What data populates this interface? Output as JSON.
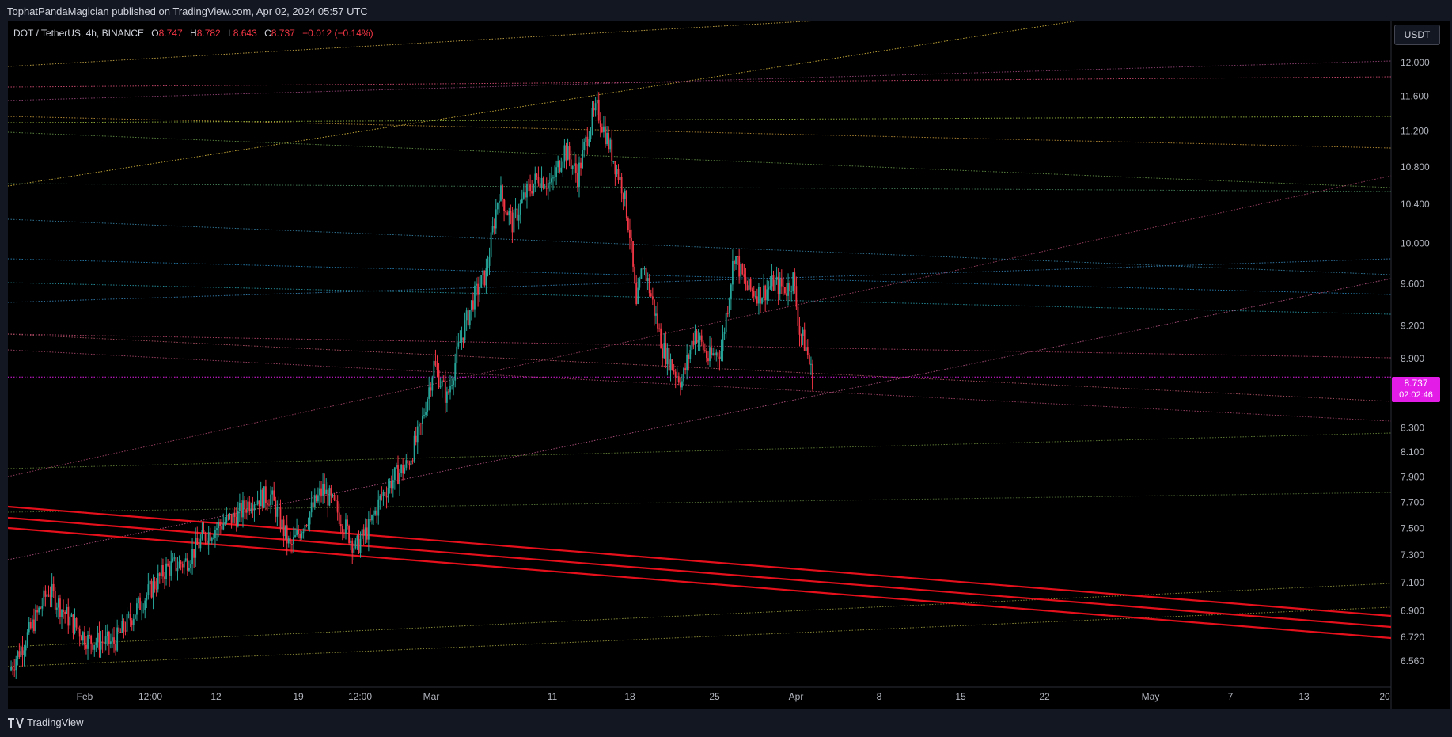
{
  "header": {
    "published_text": "TophatPandaMagician published on TradingView.com, Apr 02, 2024 05:57 UTC"
  },
  "legend": {
    "symbol": "DOT / TetherUS, 4h, BINANCE",
    "open_label": "O",
    "open": "8.747",
    "high_label": "H",
    "high": "8.782",
    "low_label": "L",
    "low": "8.643",
    "close_label": "C",
    "close": "8.737",
    "change": "−0.012 (−0.14%)"
  },
  "currency_button": "USDT",
  "price_tag": {
    "price": "8.737",
    "countdown": "02:02:46"
  },
  "footer": {
    "brand": "TradingView"
  },
  "colors": {
    "background": "#000000",
    "up_candle": "#26a69a",
    "down_candle": "#f23645",
    "last_price": "#e31ce8",
    "channel": "#e5101b"
  },
  "chart_data": {
    "type": "candlestick",
    "symbol": "DOT / TetherUS",
    "interval": "4h",
    "exchange": "BINANCE",
    "y_axis": {
      "scale": "log",
      "range": [
        6.42,
        12.45
      ],
      "ticks": [
        "12.000",
        "11.600",
        "11.200",
        "10.800",
        "10.400",
        "10.000",
        "9.600",
        "9.200",
        "8.900",
        "8.300",
        "8.100",
        "7.900",
        "7.700",
        "7.500",
        "7.300",
        "7.100",
        "6.900",
        "6.720",
        "6.560"
      ]
    },
    "x_axis": {
      "ticks": [
        "Feb",
        "12:00",
        "12",
        "19",
        "12:00",
        "Mar",
        "11",
        "18",
        "25",
        "Apr",
        "8",
        "15",
        "22",
        "May",
        "7",
        "13",
        "20"
      ]
    },
    "price_path": [
      [
        0,
        6.5
      ],
      [
        3,
        6.75
      ],
      [
        6,
        7.05
      ],
      [
        9,
        6.85
      ],
      [
        12,
        6.7
      ],
      [
        16,
        6.68
      ],
      [
        20,
        6.95
      ],
      [
        24,
        7.2
      ],
      [
        27,
        7.25
      ],
      [
        30,
        7.45
      ],
      [
        33,
        7.55
      ],
      [
        35,
        7.6
      ],
      [
        37,
        7.72
      ],
      [
        40,
        7.75
      ],
      [
        43,
        7.35
      ],
      [
        46,
        7.62
      ],
      [
        48,
        7.8
      ],
      [
        50,
        7.65
      ],
      [
        53,
        7.35
      ],
      [
        55,
        7.5
      ],
      [
        57,
        7.75
      ],
      [
        59,
        7.9
      ],
      [
        61,
        8.0
      ],
      [
        63,
        8.3
      ],
      [
        65,
        8.85
      ],
      [
        67,
        8.55
      ],
      [
        69,
        9.05
      ],
      [
        71,
        9.45
      ],
      [
        73,
        9.7
      ],
      [
        75,
        10.55
      ],
      [
        77,
        10.2
      ],
      [
        79,
        10.5
      ],
      [
        81,
        10.7
      ],
      [
        83,
        10.6
      ],
      [
        85,
        11.0
      ],
      [
        87,
        10.7
      ],
      [
        89,
        11.3
      ],
      [
        90,
        11.45
      ],
      [
        92,
        11.0
      ],
      [
        94,
        10.55
      ],
      [
        95,
        10.1
      ],
      [
        96,
        9.35
      ],
      [
        97,
        9.8
      ],
      [
        98,
        9.55
      ],
      [
        100,
        9.0
      ],
      [
        102,
        8.78
      ],
      [
        103,
        8.7
      ],
      [
        105,
        9.15
      ],
      [
        107,
        8.9
      ],
      [
        109,
        8.98
      ],
      [
        110,
        9.4
      ],
      [
        111,
        9.9
      ],
      [
        112,
        9.7
      ],
      [
        113,
        9.55
      ],
      [
        115,
        9.5
      ],
      [
        117,
        9.6
      ],
      [
        119,
        9.55
      ],
      [
        120,
        9.65
      ],
      [
        121,
        9.15
      ],
      [
        122,
        9.0
      ],
      [
        123,
        8.72
      ]
    ],
    "last_price": 8.737
  }
}
